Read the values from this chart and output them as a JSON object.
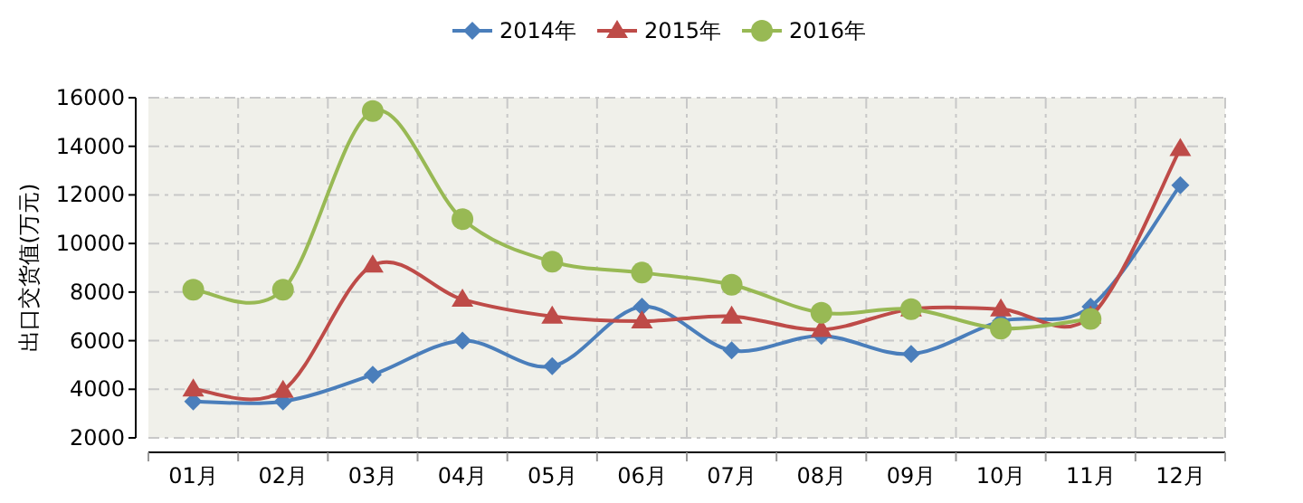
{
  "chart_data": {
    "type": "line",
    "ylabel": "出口交货值(万元)",
    "categories": [
      "01月",
      "02月",
      "03月",
      "04月",
      "05月",
      "06月",
      "07月",
      "08月",
      "09月",
      "10月",
      "11月",
      "12月"
    ],
    "series": [
      {
        "name": "2014年",
        "color": "#4a7ebb",
        "marker": "diamond",
        "values": [
          3500,
          3500,
          4600,
          6000,
          4950,
          7400,
          5600,
          6200,
          5450,
          6800,
          7400,
          12400
        ]
      },
      {
        "name": "2015年",
        "color": "#be4b48",
        "marker": "triangle",
        "values": [
          4000,
          3950,
          9100,
          7700,
          7000,
          6800,
          7000,
          6450,
          7300,
          7300,
          7000,
          13900
        ]
      },
      {
        "name": "2016年",
        "color": "#98b954",
        "marker": "circle",
        "values": [
          8100,
          8100,
          15450,
          11000,
          9250,
          8800,
          8300,
          7150,
          7300,
          6500,
          6900,
          null
        ]
      }
    ],
    "ylim": [
      2000,
      16000
    ],
    "yticks": [
      2000,
      4000,
      6000,
      8000,
      10000,
      12000,
      14000,
      16000
    ],
    "grid": true,
    "legend": "top",
    "line_style": "solid"
  }
}
